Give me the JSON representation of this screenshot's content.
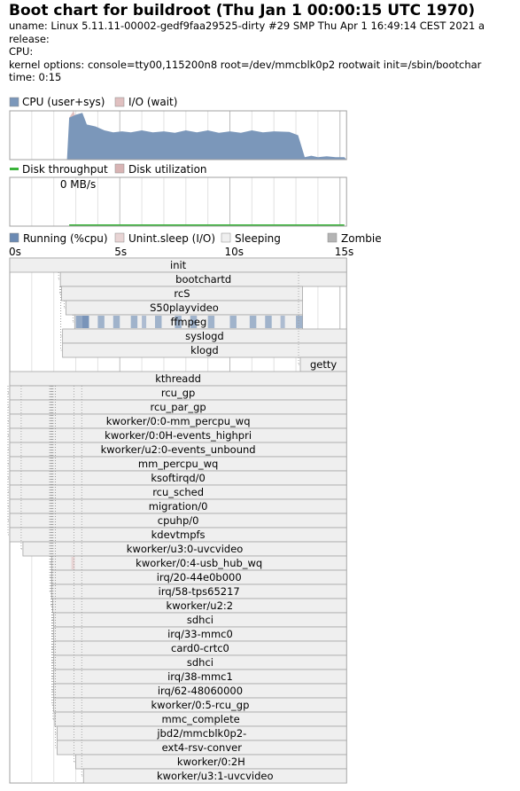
{
  "header": {
    "title": "Boot chart for buildroot (Thu Jan  1 00:00:15 UTC 1970)",
    "uname": "uname: Linux 5.11.11-00002-gedf9faa29525-dirty #29 SMP Thu Apr 1 16:49:14 CEST 2021 a",
    "release": "release:",
    "cpu": "CPU:",
    "kernel_options": "kernel options: console=tty00,115200n8 root=/dev/mmcblk0p2 rootwait init=/sbin/bootchar",
    "time": "time: 0:15"
  },
  "colors": {
    "cpu": "#7b97ba",
    "io": "#e0c0c0",
    "disk_throughput": "#39b339",
    "disk_util": "#d8b4b4",
    "running": "#6b8ab3",
    "sleeping": "#efefef",
    "uninterruptible": "#e8d4d4",
    "zombie": "#b4b4b4",
    "grid": "#d4d4d4",
    "frame": "#a0a0a0"
  },
  "chart_data": [
    {
      "type": "area",
      "name": "cpu-chart",
      "legend": [
        "CPU (user+sys)",
        "I/O (wait)"
      ],
      "xlim": [
        0,
        15.3
      ],
      "ylim": [
        0,
        1
      ],
      "cpu_series": [
        [
          0,
          0
        ],
        [
          2.6,
          0
        ],
        [
          2.7,
          0.86
        ],
        [
          3.0,
          0.92
        ],
        [
          3.3,
          0.96
        ],
        [
          3.5,
          0.72
        ],
        [
          3.9,
          0.68
        ],
        [
          4.3,
          0.6
        ],
        [
          4.7,
          0.56
        ],
        [
          5.1,
          0.58
        ],
        [
          5.5,
          0.56
        ],
        [
          6.0,
          0.6
        ],
        [
          6.5,
          0.56
        ],
        [
          7.0,
          0.58
        ],
        [
          7.5,
          0.55
        ],
        [
          8.0,
          0.6
        ],
        [
          8.5,
          0.56
        ],
        [
          9.0,
          0.6
        ],
        [
          9.5,
          0.55
        ],
        [
          10.0,
          0.58
        ],
        [
          10.5,
          0.55
        ],
        [
          11.0,
          0.6
        ],
        [
          11.5,
          0.56
        ],
        [
          12.0,
          0.58
        ],
        [
          12.7,
          0.57
        ],
        [
          13.1,
          0.5
        ],
        [
          13.4,
          0.05
        ],
        [
          13.7,
          0.08
        ],
        [
          14.0,
          0.05
        ],
        [
          14.4,
          0.07
        ],
        [
          14.8,
          0.05
        ],
        [
          15.2,
          0.05
        ],
        [
          15.3,
          0
        ]
      ],
      "io_series": [
        [
          2.7,
          0.86
        ],
        [
          2.9,
          1.0
        ],
        [
          3.1,
          0.7
        ],
        [
          3.3,
          0.96
        ]
      ]
    },
    {
      "type": "line",
      "name": "disk-chart",
      "legend": [
        "Disk throughput",
        "Disk utilization"
      ],
      "annotation": "0 MB/s",
      "xlim": [
        0,
        15.3
      ],
      "throughput_series": [
        [
          2.7,
          0
        ],
        [
          15.2,
          0
        ]
      ]
    },
    {
      "type": "gantt",
      "name": "process-chart",
      "legend": [
        "Running (%cpu)",
        "Unint.sleep (I/O)",
        "Sleeping",
        "Zombie"
      ],
      "ticks": [
        "0s",
        "5s",
        "10s",
        "15s"
      ],
      "xlim": [
        0,
        15.3
      ],
      "processes": [
        {
          "name": "init",
          "start": 0,
          "end": 15.3,
          "parent": null
        },
        {
          "name": "bootchartd",
          "start": 2.3,
          "end": 15.3,
          "parent": 0
        },
        {
          "name": "rcS",
          "start": 2.35,
          "end": 13.3,
          "parent": 1
        },
        {
          "name": "S50playvideo",
          "start": 2.55,
          "end": 13.3,
          "parent": 2
        },
        {
          "name": "ffmpeg",
          "start": 2.95,
          "end": 13.3,
          "parent": 3,
          "running": [
            [
              3.0,
              3.3,
              0.7
            ],
            [
              3.3,
              3.6,
              0.9
            ],
            [
              4.0,
              4.3,
              0.6
            ],
            [
              4.7,
              5.0,
              0.6
            ],
            [
              5.5,
              5.8,
              0.6
            ],
            [
              6.0,
              6.2,
              0.5
            ],
            [
              6.6,
              6.9,
              0.6
            ],
            [
              7.5,
              7.8,
              0.6
            ],
            [
              8.2,
              8.5,
              0.6
            ],
            [
              9.0,
              9.3,
              0.6
            ],
            [
              10.0,
              10.3,
              0.6
            ],
            [
              10.9,
              11.2,
              0.6
            ],
            [
              11.6,
              11.9,
              0.6
            ],
            [
              12.3,
              12.5,
              0.5
            ],
            [
              13.0,
              13.3,
              0.6
            ]
          ]
        },
        {
          "name": "syslogd",
          "start": 2.4,
          "end": 15.3,
          "parent": 1
        },
        {
          "name": "klogd",
          "start": 2.4,
          "end": 15.3,
          "parent": 1
        },
        {
          "name": "getty",
          "start": 13.2,
          "end": 15.3,
          "parent": 0
        },
        {
          "name": "kthreadd",
          "start": 0,
          "end": 15.3,
          "parent": null
        },
        {
          "name": "rcu_gp",
          "start": 0,
          "end": 15.3,
          "parent": 8
        },
        {
          "name": "rcu_par_gp",
          "start": 0,
          "end": 15.3,
          "parent": 8
        },
        {
          "name": "kworker/0:0-mm_percpu_wq",
          "start": 0,
          "end": 15.3,
          "parent": 8
        },
        {
          "name": "kworker/0:0H-events_highpri",
          "start": 0,
          "end": 15.3,
          "parent": 8
        },
        {
          "name": "kworker/u2:0-events_unbound",
          "start": 0,
          "end": 15.3,
          "parent": 8
        },
        {
          "name": "mm_percpu_wq",
          "start": 0,
          "end": 15.3,
          "parent": 8
        },
        {
          "name": "ksoftirqd/0",
          "start": 0,
          "end": 15.3,
          "parent": 8
        },
        {
          "name": "rcu_sched",
          "start": 0,
          "end": 15.3,
          "parent": 8
        },
        {
          "name": "migration/0",
          "start": 0,
          "end": 15.3,
          "parent": 8
        },
        {
          "name": "cpuhp/0",
          "start": 0,
          "end": 15.3,
          "parent": 8
        },
        {
          "name": "kdevtmpfs",
          "start": 0,
          "end": 15.3,
          "parent": 8
        },
        {
          "name": "kworker/u3:0-uvcvideo",
          "start": 0.6,
          "end": 15.3,
          "parent": 8
        },
        {
          "name": "kworker/0:4-usb_hub_wq",
          "start": 1.9,
          "end": 15.3,
          "parent": 8,
          "io": [
            [
              2.8,
              2.95
            ]
          ]
        },
        {
          "name": "irq/20-44e0b000",
          "start": 1.9,
          "end": 15.3,
          "parent": 8
        },
        {
          "name": "irq/58-tps65217",
          "start": 1.9,
          "end": 15.3,
          "parent": 8
        },
        {
          "name": "kworker/u2:2",
          "start": 1.95,
          "end": 15.3,
          "parent": 8
        },
        {
          "name": "sdhci",
          "start": 2.0,
          "end": 15.3,
          "parent": 8
        },
        {
          "name": "irq/33-mmc0",
          "start": 2.0,
          "end": 15.3,
          "parent": 8
        },
        {
          "name": "card0-crtc0",
          "start": 2.0,
          "end": 15.3,
          "parent": 8
        },
        {
          "name": "sdhci",
          "start": 2.0,
          "end": 15.3,
          "parent": 8
        },
        {
          "name": "irq/38-mmc1",
          "start": 2.0,
          "end": 15.3,
          "parent": 8
        },
        {
          "name": "irq/62-48060000",
          "start": 2.0,
          "end": 15.3,
          "parent": 8
        },
        {
          "name": "kworker/0:5-rcu_gp",
          "start": 2.0,
          "end": 15.3,
          "parent": 8
        },
        {
          "name": "mmc_complete",
          "start": 2.05,
          "end": 15.3,
          "parent": 8
        },
        {
          "name": "jbd2/mmcblk0p2-",
          "start": 2.15,
          "end": 15.3,
          "parent": 8
        },
        {
          "name": "ext4-rsv-conver",
          "start": 2.15,
          "end": 15.3,
          "parent": 8
        },
        {
          "name": "kworker/0:2H",
          "start": 3.0,
          "end": 15.3,
          "parent": 8
        },
        {
          "name": "kworker/u3:1-uvcvideo",
          "start": 3.35,
          "end": 15.3,
          "parent": 8
        }
      ]
    }
  ]
}
